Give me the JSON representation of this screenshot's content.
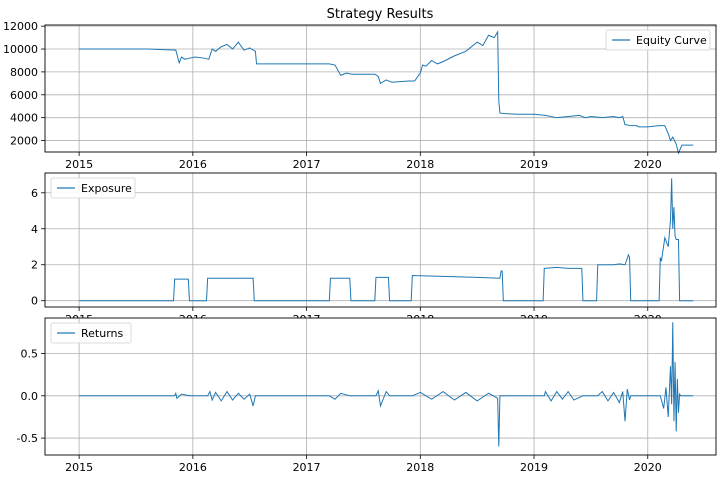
{
  "chart_data": [
    {
      "type": "line",
      "title": "Strategy Results",
      "legend": "top-right",
      "grid": true,
      "xlim": [
        2014.7,
        2020.6
      ],
      "ylim": [
        1000,
        12100
      ],
      "xticks": [
        2015,
        2016,
        2017,
        2018,
        2019,
        2020
      ],
      "yticks": [
        2000,
        4000,
        6000,
        8000,
        10000,
        12000
      ],
      "series": [
        {
          "name": "Equity Curve",
          "color": "#1f77b4",
          "x": [
            2015.0,
            2015.3,
            2015.6,
            2015.85,
            2015.88,
            2015.9,
            2015.93,
            2015.97,
            2016.02,
            2016.1,
            2016.14,
            2016.17,
            2016.2,
            2016.25,
            2016.3,
            2016.35,
            2016.4,
            2016.45,
            2016.5,
            2016.55,
            2016.56,
            2016.8,
            2017.0,
            2017.2,
            2017.25,
            2017.3,
            2017.35,
            2017.4,
            2017.5,
            2017.6,
            2017.63,
            2017.65,
            2017.7,
            2017.75,
            2017.9,
            2017.95,
            2018.0,
            2018.02,
            2018.05,
            2018.1,
            2018.15,
            2018.2,
            2018.3,
            2018.4,
            2018.5,
            2018.55,
            2018.6,
            2018.65,
            2018.68,
            2018.69,
            2018.7,
            2018.75,
            2018.85,
            2019.0,
            2019.1,
            2019.2,
            2019.3,
            2019.4,
            2019.45,
            2019.5,
            2019.6,
            2019.7,
            2019.75,
            2019.78,
            2019.8,
            2019.85,
            2019.9,
            2019.92,
            2020.0,
            2020.1,
            2020.15,
            2020.18,
            2020.2,
            2020.22,
            2020.25,
            2020.27,
            2020.3,
            2020.35,
            2020.4
          ],
          "values": [
            10000,
            10000,
            10000,
            9900,
            8800,
            9300,
            9100,
            9200,
            9300,
            9200,
            9100,
            10000,
            9800,
            10200,
            10400,
            10000,
            10600,
            9900,
            10100,
            9800,
            8700,
            8700,
            8700,
            8700,
            8600,
            7700,
            7900,
            7800,
            7800,
            7800,
            7600,
            7000,
            7300,
            7100,
            7200,
            7200,
            7900,
            8600,
            8500,
            9000,
            8700,
            8900,
            9400,
            9800,
            10600,
            10300,
            11200,
            11000,
            11500,
            5500,
            4400,
            4350,
            4300,
            4300,
            4200,
            4000,
            4100,
            4200,
            4000,
            4100,
            4000,
            4100,
            4000,
            4100,
            3400,
            3300,
            3300,
            3200,
            3200,
            3300,
            3300,
            2600,
            2000,
            2300,
            1700,
            900,
            1600,
            1600,
            1600
          ]
        }
      ]
    },
    {
      "type": "line",
      "legend": "top-left",
      "grid": true,
      "xlim": [
        2014.7,
        2020.6
      ],
      "ylim": [
        -0.35,
        7.1
      ],
      "xticks": [
        2015,
        2016,
        2017,
        2018,
        2019,
        2020
      ],
      "yticks": [
        0,
        2,
        4,
        6
      ],
      "series": [
        {
          "name": "Exposure",
          "color": "#1f77b4",
          "x": [
            2015.0,
            2015.83,
            2015.84,
            2015.96,
            2015.97,
            2016.12,
            2016.13,
            2016.53,
            2016.54,
            2017.2,
            2017.21,
            2017.38,
            2017.39,
            2017.6,
            2017.61,
            2017.72,
            2017.73,
            2017.92,
            2017.93,
            2018.2,
            2018.5,
            2018.7,
            2018.71,
            2018.72,
            2018.73,
            2019.08,
            2019.09,
            2019.2,
            2019.3,
            2019.42,
            2019.43,
            2019.55,
            2019.56,
            2019.7,
            2019.75,
            2019.8,
            2019.83,
            2019.84,
            2019.85,
            2020.1,
            2020.11,
            2020.12,
            2020.15,
            2020.18,
            2020.2,
            2020.21,
            2020.22,
            2020.23,
            2020.24,
            2020.25,
            2020.27,
            2020.28,
            2020.29,
            2020.4
          ],
          "values": [
            0,
            0,
            1.2,
            1.2,
            0,
            0,
            1.25,
            1.25,
            0,
            0,
            1.25,
            1.25,
            0,
            0,
            1.3,
            1.3,
            0,
            0,
            1.4,
            1.35,
            1.3,
            1.25,
            1.65,
            1.65,
            0,
            0,
            1.8,
            1.85,
            1.8,
            1.8,
            0,
            0,
            2.0,
            2.0,
            2.05,
            2.0,
            2.55,
            2.4,
            0,
            0,
            2.4,
            2.2,
            3.5,
            3.0,
            4.5,
            6.8,
            4.0,
            5.2,
            3.6,
            3.4,
            3.4,
            0,
            0,
            0
          ]
        }
      ]
    },
    {
      "type": "line",
      "legend": "top-left",
      "grid": true,
      "xlim": [
        2014.7,
        2020.6
      ],
      "ylim": [
        -0.7,
        0.92
      ],
      "xticks": [
        2015,
        2016,
        2017,
        2018,
        2019,
        2020
      ],
      "yticks": [
        -0.5,
        0.0,
        0.5
      ],
      "series": [
        {
          "name": "Returns",
          "color": "#1f77b4",
          "x": [
            2015.0,
            2015.84,
            2015.85,
            2015.86,
            2015.9,
            2015.97,
            2016.13,
            2016.15,
            2016.17,
            2016.2,
            2016.25,
            2016.3,
            2016.35,
            2016.4,
            2016.45,
            2016.5,
            2016.53,
            2016.55,
            2017.2,
            2017.25,
            2017.3,
            2017.38,
            2017.61,
            2017.63,
            2017.65,
            2017.7,
            2017.73,
            2017.93,
            2018.0,
            2018.1,
            2018.2,
            2018.3,
            2018.4,
            2018.5,
            2018.6,
            2018.68,
            2018.69,
            2018.7,
            2018.73,
            2019.09,
            2019.1,
            2019.15,
            2019.2,
            2019.25,
            2019.3,
            2019.35,
            2019.43,
            2019.56,
            2019.6,
            2019.65,
            2019.7,
            2019.75,
            2019.78,
            2019.8,
            2019.82,
            2019.84,
            2019.85,
            2020.11,
            2020.14,
            2020.16,
            2020.18,
            2020.2,
            2020.21,
            2020.22,
            2020.23,
            2020.24,
            2020.25,
            2020.26,
            2020.27,
            2020.28,
            2020.29,
            2020.4
          ],
          "values": [
            0,
            0,
            0.03,
            -0.03,
            0.02,
            0,
            0,
            0.05,
            -0.05,
            0.04,
            -0.06,
            0.05,
            -0.05,
            0.03,
            -0.04,
            0.02,
            -0.12,
            0,
            0,
            -0.04,
            0.03,
            0,
            0,
            0.06,
            -0.12,
            0.05,
            0,
            0,
            0.04,
            -0.04,
            0.05,
            -0.05,
            0.04,
            -0.06,
            0.03,
            -0.03,
            -0.6,
            0,
            0,
            0,
            0.05,
            -0.06,
            0.05,
            -0.04,
            0.05,
            -0.05,
            0,
            0,
            0.05,
            -0.06,
            0.04,
            -0.08,
            0.05,
            -0.3,
            0.08,
            -0.05,
            0,
            0,
            -0.15,
            0.1,
            -0.25,
            0.35,
            -0.1,
            0.87,
            -0.3,
            0.4,
            -0.42,
            0.2,
            -0.2,
            0.02,
            0,
            0
          ]
        }
      ]
    }
  ]
}
